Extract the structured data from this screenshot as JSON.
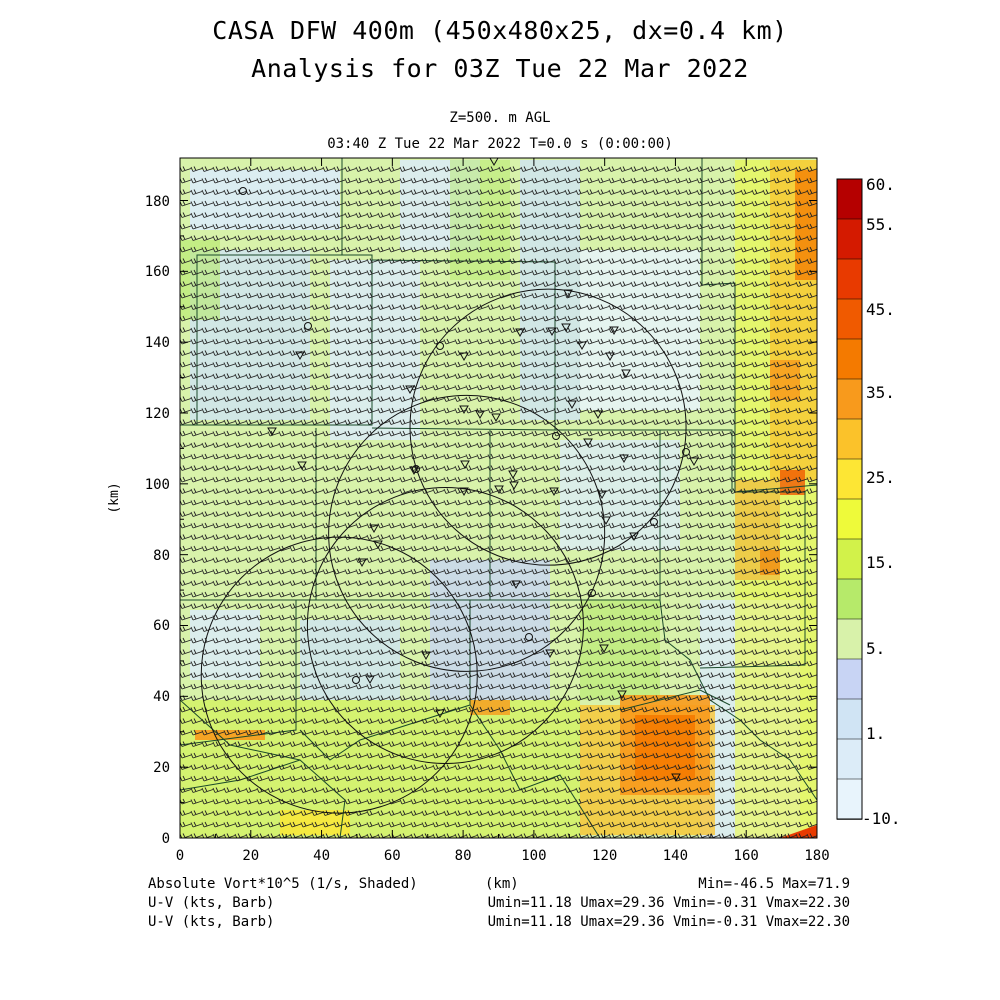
{
  "header": {
    "title_line1": "CASA DFW 400m (450x480x25, dx=0.4 km)",
    "title_line2": "Analysis for 03Z Tue 22 Mar 2022",
    "level": "Z=500. m AGL",
    "time": "03:40 Z Tue 22 Mar 2022   T=0.0 s (0:00:00)"
  },
  "axes": {
    "xlabel": "(km)",
    "ylabel": "(km)",
    "x_range": [
      0,
      180
    ],
    "y_range": [
      0,
      192
    ],
    "x_ticks": [
      "0",
      "20",
      "40",
      "60",
      "80",
      "100",
      "120",
      "140",
      "160",
      "180"
    ],
    "y_ticks": [
      "0",
      "20",
      "40",
      "60",
      "80",
      "100",
      "120",
      "140",
      "160",
      "180"
    ]
  },
  "colorbar": {
    "labels": [
      "60.",
      "55.",
      "45.",
      "35.",
      "25.",
      "15.",
      "5.",
      "1.",
      "-10."
    ],
    "colors": [
      "#b50000",
      "#d41a00",
      "#e83a00",
      "#f05a00",
      "#f47a00",
      "#f89a1c",
      "#fbc22a",
      "#fde634",
      "#eefa3a",
      "#d2f24a",
      "#b6ea6a",
      "#d8f2aa",
      "#c8d4f4",
      "#d0e4f4",
      "#dcecf8",
      "#e8f4fc"
    ]
  },
  "footer": {
    "field_label": "Absolute Vort*10^5 (1/s, Shaded)",
    "xunit": "(km)",
    "minmax": "Min=-46.5 Max=71.9",
    "vec1_label": "U-V (kts, Barb)",
    "vec1_stats": "Umin=11.18 Umax=29.36 Vmin=-0.31 Vmax=22.30",
    "vec2_label": "U-V (kts, Barb)",
    "vec2_stats": "Umin=11.18 Umax=29.36 Vmin=-0.31 Vmax=22.30"
  },
  "map_data": {
    "radar_rings": [
      {
        "cx": 104,
        "cy": 116,
        "r": 39
      },
      {
        "cx": 81,
        "cy": 86,
        "r": 39
      },
      {
        "cx": 45,
        "cy": 46,
        "r": 39
      },
      {
        "cx": 75,
        "cy": 60,
        "r": 39
      }
    ]
  }
}
